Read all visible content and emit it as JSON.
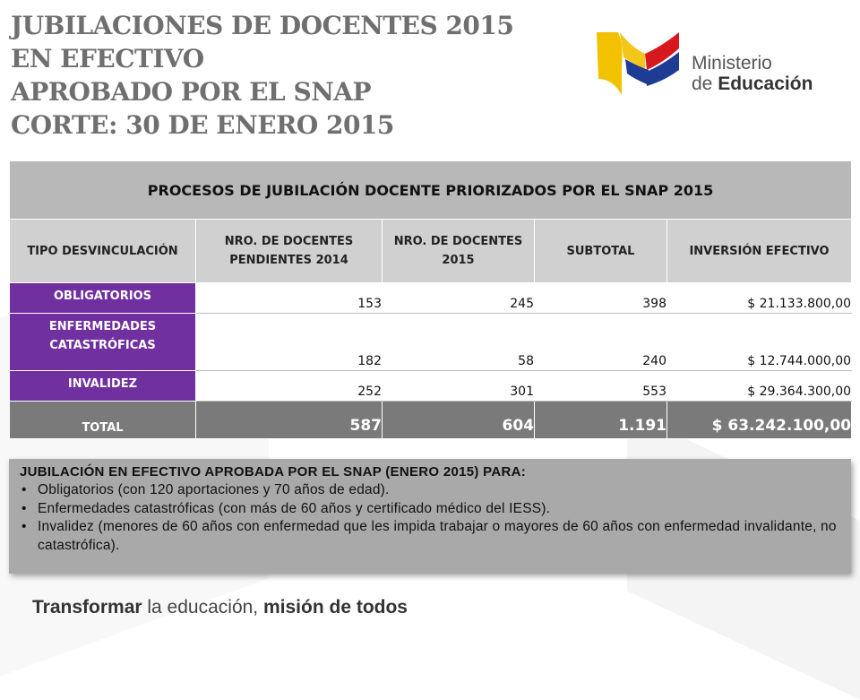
{
  "title": {
    "line1": "JUBILACIONES DE DOCENTES 2015",
    "line2": "EN EFECTIVO",
    "line3": "APROBADO POR EL SNAP",
    "line4": "CORTE: 30 DE ENERO 2015"
  },
  "logo": {
    "line1": "Ministerio",
    "line2_prefix": "de ",
    "line2_bold": "Educación",
    "colors": {
      "yellow": "#f2c100",
      "blue": "#1f3c95",
      "red": "#d7191f"
    }
  },
  "table": {
    "header": "PROCESOS DE JUBILACIÓN DOCENTE PRIORIZADOS POR EL SNAP 2015",
    "columns": [
      "TIPO DESVINCULACIÓN",
      "NRO. DE DOCENTES PENDIENTES 2014",
      "NRO. DE DOCENTES 2015",
      "SUBTOTAL",
      "INVERSIÓN EFECTIVO"
    ],
    "rows": [
      {
        "type": "OBLIGATORIOS",
        "pending_2014": "153",
        "docentes_2015": "245",
        "subtotal": "398",
        "investment": "$ 21.133.800,00"
      },
      {
        "type": "ENFERMEDADES CATASTRÓFICAS",
        "pending_2014": "182",
        "docentes_2015": "58",
        "subtotal": "240",
        "investment": "$ 12.744.000,00"
      },
      {
        "type": "INVALIDEZ",
        "pending_2014": "252",
        "docentes_2015": "301",
        "subtotal": "553",
        "investment": "$ 29.364.300,00"
      }
    ],
    "total": {
      "label": "TOTAL",
      "pending_2014": "587",
      "docentes_2015": "604",
      "subtotal": "1.191",
      "investment": "$ 63.242.100,00"
    },
    "colors": {
      "category_bg": "#7030a0",
      "total_bg": "#7a7a7a",
      "header_bg": "#b8b8b8"
    }
  },
  "note": {
    "title": "JUBILACIÓN EN EFECTIVO APROBADA  POR EL SNAP (ENERO 2015) PARA:",
    "items": [
      "Obligatorios (con 120 aportaciones y 70 años de edad).",
      "Enfermedades catastróficas (con más de 60 años y certificado médico del IESS).",
      "Invalidez (menores de 60 años con enfermedad que les impida trabajar o mayores de 60 años con enfermedad invalidante, no catastrófica)."
    ]
  },
  "footer": {
    "part1": "Transformar",
    "part2": " la educación, ",
    "part3": "misión de todos"
  }
}
